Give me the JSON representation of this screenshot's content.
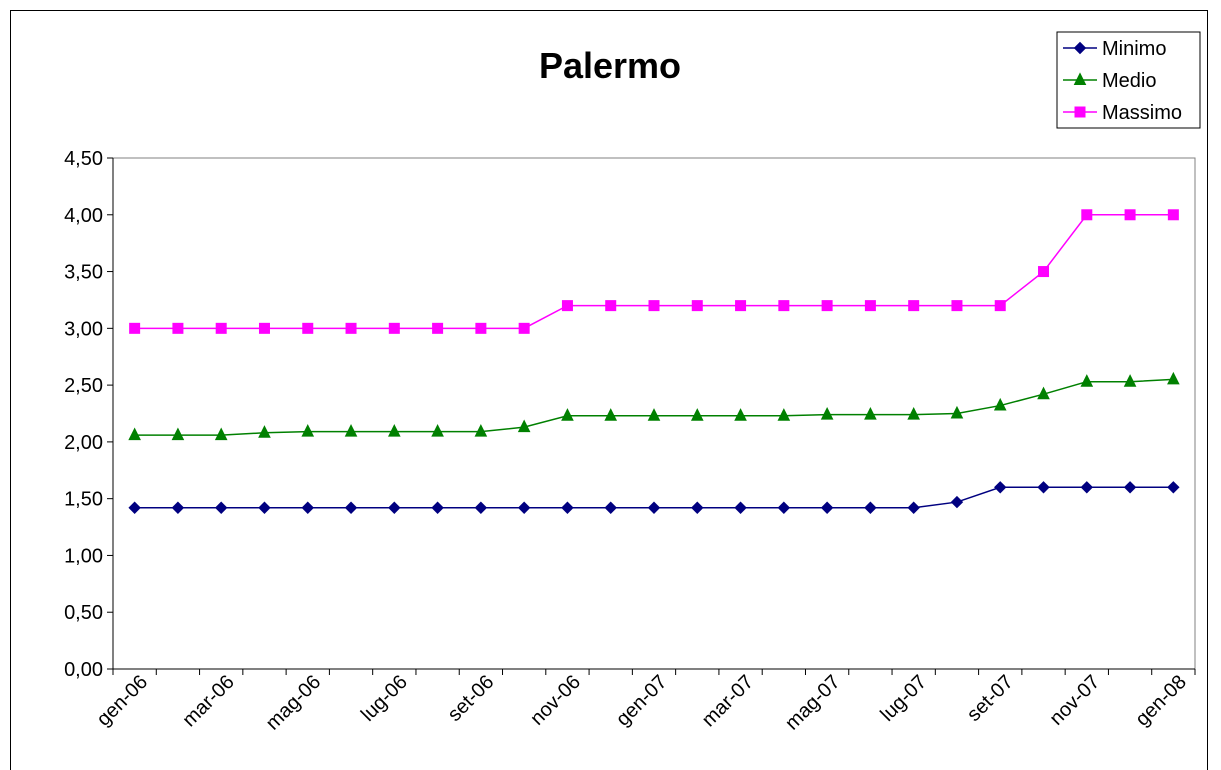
{
  "chart_data": {
    "type": "line",
    "title": "Palermo",
    "xlabel": "",
    "ylabel": "",
    "ylim": [
      0,
      4.5
    ],
    "y_ticks": [
      "0,00",
      "0,50",
      "1,00",
      "1,50",
      "2,00",
      "2,50",
      "3,00",
      "3,50",
      "4,00",
      "4,50"
    ],
    "x_tick_labels": [
      "gen-06",
      "mar-06",
      "mag-06",
      "lug-06",
      "set-06",
      "nov-06",
      "gen-07",
      "mar-07",
      "mag-07",
      "lug-07",
      "set-07",
      "nov-07",
      "gen-08"
    ],
    "grid": false,
    "legend_position": "top-right",
    "x": [
      "gen-06",
      "feb-06",
      "mar-06",
      "apr-06",
      "mag-06",
      "giu-06",
      "lug-06",
      "ago-06",
      "set-06",
      "ott-06",
      "nov-06",
      "dic-06",
      "gen-07",
      "feb-07",
      "mar-07",
      "apr-07",
      "mag-07",
      "giu-07",
      "lug-07",
      "ago-07",
      "set-07",
      "ott-07",
      "nov-07",
      "dic-07",
      "gen-08"
    ],
    "series": [
      {
        "name": "Minimo",
        "color": "#000080",
        "marker": "diamond",
        "values": [
          1.42,
          1.42,
          1.42,
          1.42,
          1.42,
          1.42,
          1.42,
          1.42,
          1.42,
          1.42,
          1.42,
          1.42,
          1.42,
          1.42,
          1.42,
          1.42,
          1.42,
          1.42,
          1.42,
          1.47,
          1.6,
          1.6,
          1.6,
          1.6,
          1.6
        ]
      },
      {
        "name": "Medio",
        "color": "#008000",
        "marker": "triangle",
        "values": [
          2.06,
          2.06,
          2.06,
          2.08,
          2.09,
          2.09,
          2.09,
          2.09,
          2.09,
          2.13,
          2.23,
          2.23,
          2.23,
          2.23,
          2.23,
          2.23,
          2.24,
          2.24,
          2.24,
          2.25,
          2.32,
          2.42,
          2.53,
          2.53,
          2.55
        ]
      },
      {
        "name": "Massimo",
        "color": "#ff00ff",
        "marker": "square",
        "values": [
          3.0,
          3.0,
          3.0,
          3.0,
          3.0,
          3.0,
          3.0,
          3.0,
          3.0,
          3.0,
          3.2,
          3.2,
          3.2,
          3.2,
          3.2,
          3.2,
          3.2,
          3.2,
          3.2,
          3.2,
          3.2,
          3.5,
          4.0,
          4.0,
          4.0
        ]
      }
    ]
  }
}
